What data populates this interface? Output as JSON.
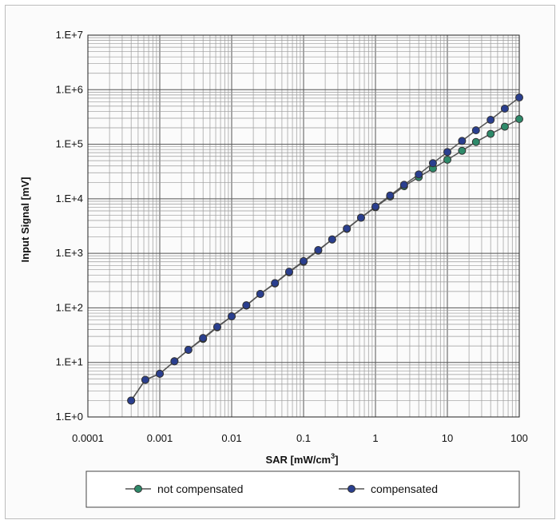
{
  "chart_data": {
    "type": "line",
    "title": "",
    "xlabel": "SAR [mW/cm",
    "xlabel_sup": "3",
    "xlabel_end": "]",
    "ylabel": "Input Signal  [mV]",
    "xscale": "log",
    "yscale": "log",
    "xlim": [
      0.0001,
      100
    ],
    "ylim": [
      1,
      10000000
    ],
    "grid": true,
    "legend_position": "bottom",
    "x_tick_labels": [
      "0.0001",
      "0.001",
      "0.01",
      "0.1",
      "1",
      "10",
      "100"
    ],
    "y_tick_labels": [
      "1.E+0",
      "1.E+1",
      "1.E+2",
      "1.E+3",
      "1.E+4",
      "1.E+5",
      "1.E+6",
      "1.E+7"
    ],
    "series": [
      {
        "name": "not compensated",
        "color": "#2e8a6a",
        "x": [
          0.0004,
          0.00063,
          0.001,
          0.0016,
          0.0025,
          0.004,
          0.0063,
          0.01,
          0.016,
          0.025,
          0.04,
          0.063,
          0.1,
          0.16,
          0.25,
          0.4,
          0.63,
          1,
          1.6,
          2.5,
          4,
          6.3,
          10,
          16,
          25,
          40,
          63,
          100
        ],
        "y": [
          2,
          4.8,
          6.2,
          10.5,
          17,
          27,
          44,
          70,
          110,
          180,
          280,
          450,
          700,
          1120,
          1800,
          2800,
          4500,
          7000,
          11000,
          17000,
          25000,
          36000,
          52000,
          76000,
          110000,
          155000,
          210000,
          290000
        ]
      },
      {
        "name": "compensated",
        "color": "#2a3f8f",
        "x": [
          0.0004,
          0.00063,
          0.001,
          0.0016,
          0.0025,
          0.004,
          0.0063,
          0.01,
          0.016,
          0.025,
          0.04,
          0.063,
          0.1,
          0.16,
          0.25,
          0.4,
          0.63,
          1,
          1.6,
          2.5,
          4,
          6.3,
          10,
          16,
          25,
          40,
          63,
          100
        ],
        "y": [
          2,
          4.8,
          6.2,
          10.5,
          17,
          28,
          45,
          70,
          112,
          180,
          285,
          460,
          720,
          1150,
          1800,
          2850,
          4500,
          7200,
          11500,
          18000,
          28000,
          45000,
          72000,
          115000,
          180000,
          280000,
          450000,
          720000
        ]
      }
    ]
  }
}
